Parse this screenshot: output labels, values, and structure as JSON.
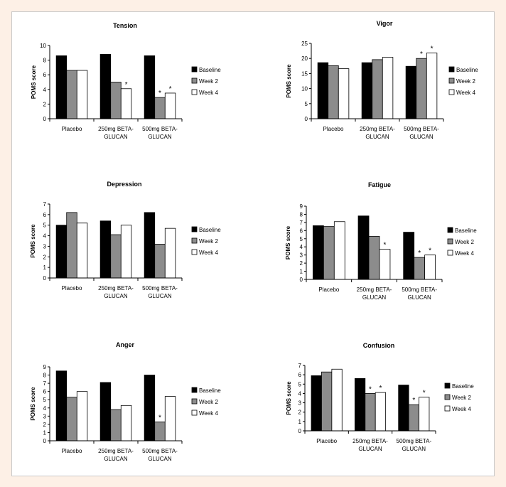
{
  "colors": {
    "Baseline": "#000000",
    "Week 2": "#8c8c8c",
    "Week 4": "#ffffff"
  },
  "chart_data": [
    {
      "type": "bar",
      "title": "Tension",
      "ylabel": "POMS score",
      "categories": [
        [
          "Placebo"
        ],
        [
          "250mg BETA-",
          "GLUCAN"
        ],
        [
          "500mg BETA-",
          "GLUCAN"
        ]
      ],
      "series": [
        {
          "name": "Baseline",
          "values": [
            8.6,
            8.8,
            8.6
          ]
        },
        {
          "name": "Week 2",
          "values": [
            6.6,
            5.0,
            2.9
          ]
        },
        {
          "name": "Week 4",
          "values": [
            6.6,
            4.1,
            3.5
          ]
        }
      ],
      "ylim": [
        0,
        10
      ],
      "yticks": [
        0,
        2,
        4,
        6,
        8,
        10
      ],
      "significant": [
        [
          2,
          1
        ],
        [
          1,
          2
        ],
        [
          2,
          2
        ]
      ]
    },
    {
      "type": "bar",
      "title": "Vigor",
      "ylabel": "POMS score",
      "categories": [
        [
          "Placebo"
        ],
        [
          "250mg BETA-",
          "GLUCAN"
        ],
        [
          "500mg BETA-",
          "GLUCAN"
        ]
      ],
      "series": [
        {
          "name": "Baseline",
          "values": [
            18.6,
            18.6,
            17.4
          ]
        },
        {
          "name": "Week 2",
          "values": [
            17.6,
            19.6,
            20.0
          ]
        },
        {
          "name": "Week 4",
          "values": [
            16.6,
            20.4,
            21.8
          ]
        }
      ],
      "ylim": [
        0,
        25
      ],
      "yticks": [
        0,
        5,
        10,
        15,
        20,
        25
      ],
      "significant": [
        [
          2,
          1
        ],
        [
          2,
          2
        ]
      ]
    },
    {
      "type": "bar",
      "title": "Depression",
      "ylabel": "POMS score",
      "categories": [
        [
          "Placebo"
        ],
        [
          "250mg BETA-",
          "GLUCAN"
        ],
        [
          "500mg BETA-",
          "GLUCAN"
        ]
      ],
      "series": [
        {
          "name": "Baseline",
          "values": [
            5.0,
            5.4,
            6.2
          ]
        },
        {
          "name": "Week 2",
          "values": [
            6.2,
            4.1,
            3.2
          ]
        },
        {
          "name": "Week 4",
          "values": [
            5.2,
            5.0,
            4.7
          ]
        }
      ],
      "ylim": [
        0,
        7
      ],
      "yticks": [
        0,
        1,
        2,
        3,
        4,
        5,
        6,
        7
      ],
      "significant": []
    },
    {
      "type": "bar",
      "title": "Fatigue",
      "ylabel": "POMS score",
      "categories": [
        [
          "Placebo"
        ],
        [
          "250mg BETA-",
          "GLUCAN"
        ],
        [
          "500mg BETA-",
          "GLUCAN"
        ]
      ],
      "series": [
        {
          "name": "Baseline",
          "values": [
            6.6,
            7.8,
            5.8
          ]
        },
        {
          "name": "Week 2",
          "values": [
            6.5,
            5.3,
            2.7
          ]
        },
        {
          "name": "Week 4",
          "values": [
            7.1,
            3.7,
            3.0
          ]
        }
      ],
      "ylim": [
        0,
        9
      ],
      "yticks": [
        0,
        1,
        2,
        3,
        4,
        5,
        6,
        7,
        8,
        9
      ],
      "significant": [
        [
          1,
          2
        ],
        [
          2,
          1
        ],
        [
          2,
          2
        ]
      ]
    },
    {
      "type": "bar",
      "title": "Anger",
      "ylabel": "POMS score",
      "categories": [
        [
          "Placebo"
        ],
        [
          "250mg BETA-",
          "GLUCAN"
        ],
        [
          "500mg BETA-",
          "GLUCAN"
        ]
      ],
      "series": [
        {
          "name": "Baseline",
          "values": [
            8.5,
            7.1,
            8.0
          ]
        },
        {
          "name": "Week 2",
          "values": [
            5.3,
            3.8,
            2.3
          ]
        },
        {
          "name": "Week 4",
          "values": [
            6.0,
            4.3,
            5.4
          ]
        }
      ],
      "ylim": [
        0,
        9
      ],
      "yticks": [
        0,
        1,
        2,
        3,
        4,
        5,
        6,
        7,
        8,
        9
      ],
      "significant": [
        [
          2,
          1
        ]
      ]
    },
    {
      "type": "bar",
      "title": "Confusion",
      "ylabel": "POMS score",
      "categories": [
        [
          "Placebo"
        ],
        [
          "250mg BETA-",
          "GLUCAN"
        ],
        [
          "500mg BETA-",
          "GLUCAN"
        ]
      ],
      "series": [
        {
          "name": "Baseline",
          "values": [
            5.9,
            5.6,
            4.9
          ]
        },
        {
          "name": "Week 2",
          "values": [
            6.3,
            4.0,
            2.8
          ]
        },
        {
          "name": "Week 4",
          "values": [
            6.6,
            4.1,
            3.6
          ]
        }
      ],
      "ylim": [
        0,
        7
      ],
      "yticks": [
        0,
        1,
        2,
        3,
        4,
        5,
        6,
        7
      ],
      "significant": [
        [
          1,
          1
        ],
        [
          1,
          2
        ],
        [
          2,
          1
        ],
        [
          2,
          2
        ]
      ]
    }
  ],
  "significance_marker": "*"
}
